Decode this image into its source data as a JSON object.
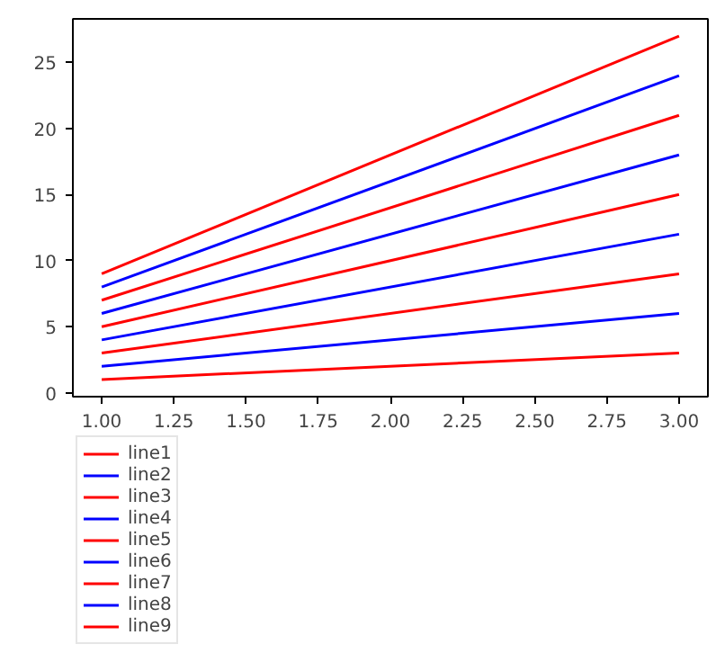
{
  "chart_data": {
    "type": "line",
    "x": [
      1,
      3
    ],
    "series": [
      {
        "name": "line1",
        "color": "#ff0000",
        "values": [
          1,
          3
        ]
      },
      {
        "name": "line2",
        "color": "#0000ff",
        "values": [
          2,
          6
        ]
      },
      {
        "name": "line3",
        "color": "#ff0000",
        "values": [
          3,
          9
        ]
      },
      {
        "name": "line4",
        "color": "#0000ff",
        "values": [
          4,
          12
        ]
      },
      {
        "name": "line5",
        "color": "#ff0000",
        "values": [
          5,
          15
        ]
      },
      {
        "name": "line6",
        "color": "#0000ff",
        "values": [
          6,
          18
        ]
      },
      {
        "name": "line7",
        "color": "#ff0000",
        "values": [
          7,
          21
        ]
      },
      {
        "name": "line8",
        "color": "#0000ff",
        "values": [
          8,
          24
        ]
      },
      {
        "name": "line9",
        "color": "#ff0000",
        "values": [
          9,
          27
        ]
      }
    ],
    "xlim": [
      0.9,
      3.1
    ],
    "ylim": [
      -0.3,
      28.3
    ],
    "xticks": [
      {
        "value": 1,
        "label": "1.00"
      },
      {
        "value": 1.25,
        "label": "1.25"
      },
      {
        "value": 1.5,
        "label": "1.50"
      },
      {
        "value": 1.75,
        "label": "1.75"
      },
      {
        "value": 2,
        "label": "2.00"
      },
      {
        "value": 2.25,
        "label": "2.25"
      },
      {
        "value": 2.5,
        "label": "2.50"
      },
      {
        "value": 2.75,
        "label": "2.75"
      },
      {
        "value": 3,
        "label": "3.00"
      }
    ],
    "yticks": [
      0,
      5,
      10,
      15,
      20,
      25
    ],
    "legend": "bottom left",
    "grid": false
  }
}
